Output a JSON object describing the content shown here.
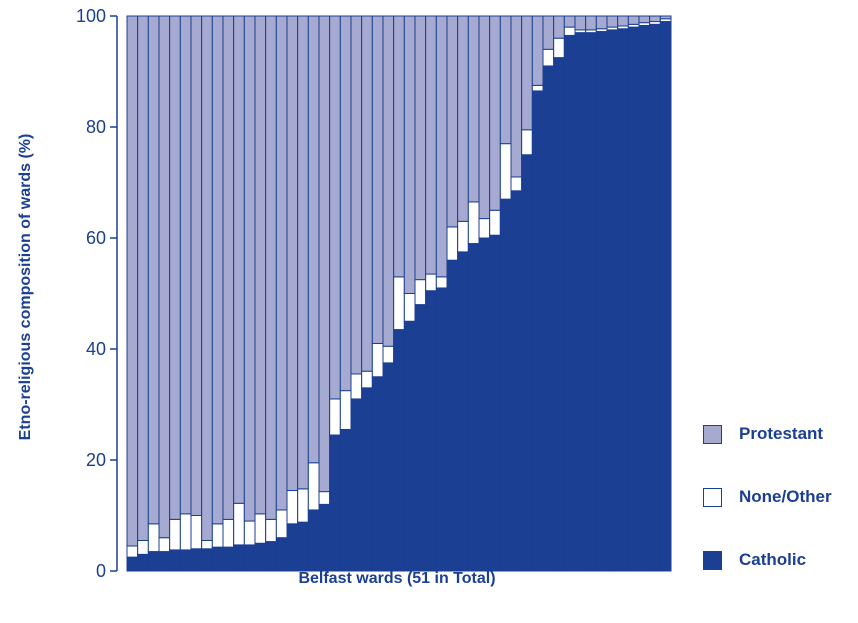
{
  "chart_data": {
    "type": "bar",
    "stacked": true,
    "title": "",
    "xlabel": "Belfast wards (51 in Total)",
    "ylabel": "Etno-religious composition of wards (%)",
    "ylim": [
      0,
      100
    ],
    "yticks": [
      "0",
      "20",
      "40",
      "60",
      "80",
      "100"
    ],
    "categories_count": 51,
    "series": [
      {
        "name": "Catholic",
        "color": "#1b3f93",
        "values": [
          2.5,
          3,
          3.5,
          3.5,
          3.8,
          3.8,
          4,
          4,
          4.3,
          4.3,
          4.7,
          4.7,
          5,
          5.3,
          6,
          8.5,
          8.8,
          11,
          12,
          24.5,
          25.5,
          31,
          33,
          35,
          37.5,
          43.5,
          45,
          48,
          50.5,
          51,
          56,
          57.5,
          59,
          60,
          60.5,
          67,
          68.5,
          75,
          86.5,
          91,
          92.5,
          96.5,
          97,
          97,
          97.2,
          97.5,
          97.7,
          98,
          98.3,
          98.5,
          99
        ]
      },
      {
        "name": "None/Other",
        "color": "#ffffff",
        "values": [
          2,
          2.5,
          5,
          2.5,
          5.5,
          6.5,
          6,
          1.5,
          4.2,
          5,
          7.5,
          4.3,
          5.3,
          4,
          5,
          6,
          6,
          8.5,
          2.3,
          6.5,
          7,
          4.5,
          3,
          6,
          3,
          9.5,
          5,
          4.5,
          3,
          2,
          6,
          5.5,
          7.5,
          3.5,
          4.5,
          10,
          2.5,
          4.5,
          1,
          3,
          3.5,
          1.5,
          0.5,
          0.5,
          0.5,
          0.5,
          0.5,
          0.5,
          0.5,
          0.5,
          0.5
        ]
      },
      {
        "name": "Protestant",
        "color": "#a6aad0",
        "values": [
          95.5,
          94.5,
          91.5,
          94,
          90.7,
          89.7,
          90,
          94.5,
          91.5,
          90.7,
          87.8,
          91,
          89.7,
          90.7,
          89,
          85.5,
          85.2,
          80.5,
          85.7,
          69,
          67.5,
          64.5,
          64,
          59,
          59.5,
          47,
          50,
          47.5,
          46.5,
          47,
          38,
          37,
          33.5,
          36.5,
          35,
          23,
          29,
          20.5,
          12.5,
          6,
          4,
          2,
          2.5,
          2.5,
          2.3,
          2,
          1.8,
          1.5,
          1.2,
          1,
          0.5
        ]
      }
    ],
    "legend": [
      "Protestant",
      "None/Other",
      "Catholic"
    ],
    "legend_position": "right"
  }
}
